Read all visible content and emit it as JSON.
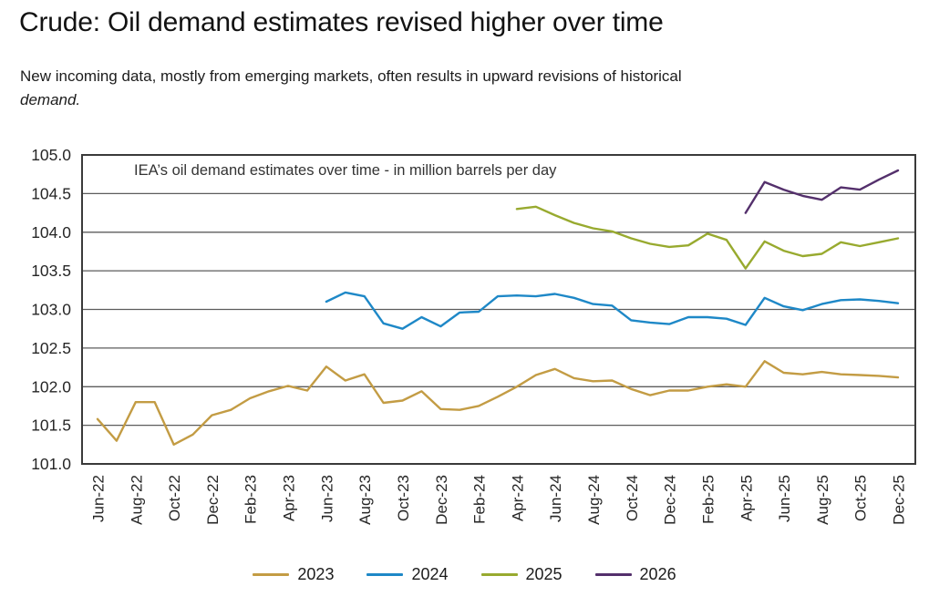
{
  "page": {
    "title": "Crude: Oil demand estimates revised higher over time",
    "subtitle": {
      "line1": "New incoming data, mostly from emerging markets, often results in upward revisions of historical",
      "line2": "demand."
    }
  },
  "chart_data": {
    "type": "line",
    "title": "IEA’s oil demand estimates over time - in million barrels per day",
    "ylabel": "",
    "xlabel": "",
    "ylim": [
      101.0,
      105.0
    ],
    "ytick_step": 0.5,
    "ytick_labels": [
      "105.0",
      "104.5",
      "104.0",
      "103.5",
      "103.0",
      "102.5",
      "102.0",
      "101.5",
      "101.0"
    ],
    "grid": "horizontal",
    "legend_position": "bottom",
    "x_months": [
      "Jun-22",
      "Jul-22",
      "Aug-22",
      "Sep-22",
      "Oct-22",
      "Nov-22",
      "Dec-22",
      "Jan-23",
      "Feb-23",
      "Mar-23",
      "Apr-23",
      "May-23",
      "Jun-23",
      "Jul-23",
      "Aug-23",
      "Sep-23",
      "Oct-23",
      "Nov-23",
      "Dec-23",
      "Jan-24",
      "Feb-24",
      "Mar-24",
      "Apr-24",
      "May-24",
      "Jun-24",
      "Jul-24",
      "Aug-24",
      "Sep-24",
      "Oct-24",
      "Nov-24",
      "Dec-24",
      "Jan-25",
      "Feb-25",
      "Mar-25",
      "Apr-25",
      "May-25",
      "Jun-25",
      "Jul-25",
      "Aug-25",
      "Sep-25",
      "Oct-25",
      "Nov-25",
      "Dec-25"
    ],
    "xtick_labels": [
      "Jun-22",
      "Aug-22",
      "Oct-22",
      "Dec-22",
      "Feb-23",
      "Apr-23",
      "Jun-23",
      "Aug-23",
      "Oct-23",
      "Dec-23",
      "Feb-24",
      "Apr-24",
      "Jun-24",
      "Aug-24",
      "Oct-24",
      "Dec-24",
      "Feb-25",
      "Apr-25",
      "Jun-25",
      "Aug-25",
      "Oct-25",
      "Dec-25"
    ],
    "series": [
      {
        "name": "2023",
        "color": "#C39C44",
        "start_index": 0,
        "values": [
          101.58,
          101.3,
          101.8,
          101.8,
          101.25,
          101.38,
          101.63,
          101.7,
          101.85,
          101.94,
          102.01,
          101.95,
          102.26,
          102.08,
          102.16,
          101.79,
          101.82,
          101.94,
          101.71,
          101.7,
          101.75,
          101.87,
          102.0,
          102.15,
          102.23,
          102.11,
          102.07,
          102.08,
          101.97,
          101.89,
          101.95,
          101.95,
          102.0,
          102.03,
          102.0,
          102.33,
          102.18,
          102.16,
          102.19,
          102.16,
          102.15,
          102.14,
          102.12
        ]
      },
      {
        "name": "2024",
        "color": "#1E88C7",
        "start_index": 12,
        "values": [
          103.1,
          103.22,
          103.17,
          102.82,
          102.75,
          102.9,
          102.78,
          102.96,
          102.97,
          103.17,
          103.18,
          103.17,
          103.2,
          103.15,
          103.07,
          103.05,
          102.86,
          102.83,
          102.81,
          102.9,
          102.9,
          102.88,
          102.8,
          103.15,
          103.04,
          102.99,
          103.07,
          103.12,
          103.13,
          103.11,
          103.08
        ]
      },
      {
        "name": "2025",
        "color": "#98AA2F",
        "start_index": 22,
        "values": [
          104.3,
          104.33,
          104.22,
          104.12,
          104.05,
          104.01,
          103.92,
          103.85,
          103.81,
          103.83,
          103.98,
          103.9,
          103.53,
          103.88,
          103.76,
          103.69,
          103.72,
          103.87,
          103.82,
          103.87,
          103.92
        ]
      },
      {
        "name": "2026",
        "color": "#54306C",
        "start_index": 34,
        "values": [
          104.25,
          104.65,
          104.55,
          104.47,
          104.42,
          104.58,
          104.55,
          104.68,
          104.8
        ]
      }
    ]
  }
}
